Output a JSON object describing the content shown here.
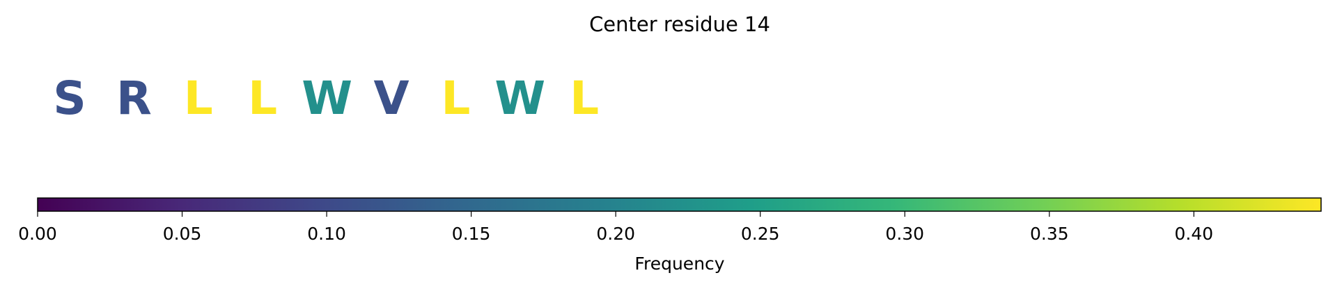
{
  "chart_data": {
    "type": "sequence",
    "title": "Center residue 14",
    "categories": [
      "S",
      "R",
      "L",
      "L",
      "W",
      "V",
      "L",
      "W",
      "L"
    ],
    "values": [
      0.111,
      0.111,
      0.444,
      0.444,
      0.222,
      0.111,
      0.444,
      0.222,
      0.444
    ],
    "colormap": [
      "#440154",
      "#482878",
      "#3e4989",
      "#31688e",
      "#26828e",
      "#1f9e89",
      "#35b779",
      "#6ece58",
      "#b5de2b",
      "#fde725"
    ],
    "xlabel": "Frequency",
    "xlim": [
      0,
      0.444
    ],
    "xticks": [
      {
        "value": 0,
        "label": "0.00"
      },
      {
        "value": 0.05,
        "label": "0.05"
      },
      {
        "value": 0.1,
        "label": "0.10"
      },
      {
        "value": 0.15,
        "label": "0.15"
      },
      {
        "value": 0.2,
        "label": "0.20"
      },
      {
        "value": 0.25,
        "label": "0.25"
      },
      {
        "value": 0.3,
        "label": "0.30"
      },
      {
        "value": 0.35,
        "label": "0.35"
      },
      {
        "value": 0.4,
        "label": "0.40"
      }
    ]
  }
}
